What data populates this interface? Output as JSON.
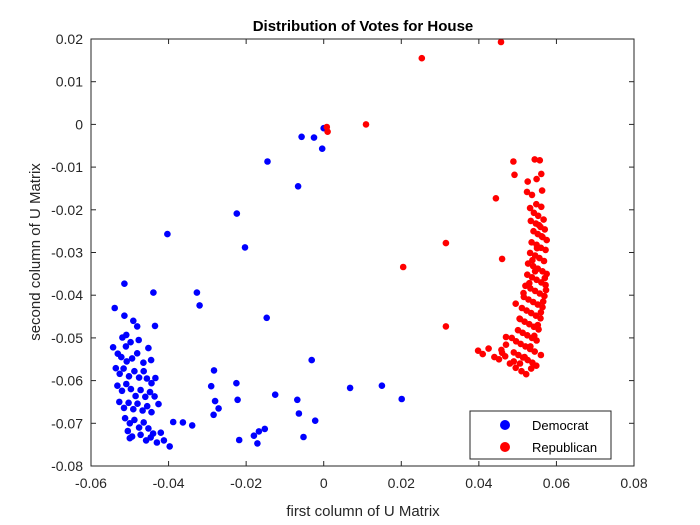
{
  "chart_data": {
    "type": "scatter",
    "title": "Distribution of Votes for House",
    "xlabel": "first column of U Matrix",
    "ylabel": "second column of U Matrix",
    "xlim": [
      -0.06,
      0.08
    ],
    "ylim": [
      -0.08,
      0.02
    ],
    "x_ticks": [
      "-0.06",
      "-0.04",
      "-0.02",
      "0",
      "0.02",
      "0.04",
      "0.06",
      "0.08"
    ],
    "y_ticks": [
      "0.02",
      "0.01",
      "0",
      "-0.01",
      "-0.02",
      "-0.03",
      "-0.04",
      "-0.05",
      "-0.06",
      "-0.07",
      "-0.08"
    ],
    "grid": false,
    "legend_position": "bottom-right",
    "series": [
      {
        "name": "Democrat",
        "color": "#0000ff",
        "points": [
          [
            -0.0514,
            -0.0373
          ],
          [
            -0.0539,
            -0.043
          ],
          [
            -0.0514,
            -0.0448
          ],
          [
            -0.0491,
            -0.046
          ],
          [
            -0.0439,
            -0.0394
          ],
          [
            -0.0403,
            -0.0257
          ],
          [
            -0.0481,
            -0.0473
          ],
          [
            -0.0435,
            -0.0472
          ],
          [
            -0.0543,
            -0.0522
          ],
          [
            -0.0531,
            -0.0537
          ],
          [
            -0.0519,
            -0.0499
          ],
          [
            -0.0509,
            -0.0493
          ],
          [
            -0.0498,
            -0.051
          ],
          [
            -0.051,
            -0.052
          ],
          [
            -0.0522,
            -0.0545
          ],
          [
            -0.0508,
            -0.0555
          ],
          [
            -0.0494,
            -0.0548
          ],
          [
            -0.0481,
            -0.0536
          ],
          [
            -0.0477,
            -0.0505
          ],
          [
            -0.0452,
            -0.0524
          ],
          [
            -0.0445,
            -0.0552
          ],
          [
            -0.0465,
            -0.0558
          ],
          [
            -0.0536,
            -0.0571
          ],
          [
            -0.0526,
            -0.0584
          ],
          [
            -0.0516,
            -0.0572
          ],
          [
            -0.0502,
            -0.059
          ],
          [
            -0.0488,
            -0.0578
          ],
          [
            -0.0476,
            -0.0593
          ],
          [
            -0.0464,
            -0.0578
          ],
          [
            -0.0456,
            -0.0595
          ],
          [
            -0.0444,
            -0.0606
          ],
          [
            -0.0434,
            -0.0594
          ],
          [
            -0.0532,
            -0.0612
          ],
          [
            -0.052,
            -0.0624
          ],
          [
            -0.0509,
            -0.0608
          ],
          [
            -0.0497,
            -0.062
          ],
          [
            -0.0485,
            -0.0636
          ],
          [
            -0.0472,
            -0.0622
          ],
          [
            -0.046,
            -0.0638
          ],
          [
            -0.0448,
            -0.0627
          ],
          [
            -0.0436,
            -0.0637
          ],
          [
            -0.0527,
            -0.065
          ],
          [
            -0.0515,
            -0.0664
          ],
          [
            -0.0503,
            -0.0652
          ],
          [
            -0.0491,
            -0.0667
          ],
          [
            -0.048,
            -0.0654
          ],
          [
            -0.0467,
            -0.067
          ],
          [
            -0.0455,
            -0.066
          ],
          [
            -0.0444,
            -0.0674
          ],
          [
            -0.0426,
            -0.0655
          ],
          [
            -0.0512,
            -0.0688
          ],
          [
            -0.05,
            -0.07
          ],
          [
            -0.0488,
            -0.0692
          ],
          [
            -0.0476,
            -0.071
          ],
          [
            -0.0464,
            -0.0698
          ],
          [
            -0.0452,
            -0.0712
          ],
          [
            -0.044,
            -0.0724
          ],
          [
            -0.0505,
            -0.0718
          ],
          [
            -0.0494,
            -0.0731
          ],
          [
            -0.0472,
            -0.0727
          ],
          [
            -0.0458,
            -0.074
          ],
          [
            -0.0446,
            -0.0733
          ],
          [
            -0.043,
            -0.0745
          ],
          [
            -0.0412,
            -0.074
          ],
          [
            -0.05,
            -0.0735
          ],
          [
            -0.042,
            -0.0722
          ],
          [
            -0.0397,
            -0.0754
          ],
          [
            -0.0388,
            -0.0697
          ],
          [
            -0.0363,
            -0.0698
          ],
          [
            -0.0339,
            -0.0705
          ],
          [
            -0.0327,
            -0.0394
          ],
          [
            -0.032,
            -0.0424
          ],
          [
            -0.0283,
            -0.0576
          ],
          [
            -0.029,
            -0.0613
          ],
          [
            -0.028,
            -0.0648
          ],
          [
            -0.0271,
            -0.0665
          ],
          [
            -0.0284,
            -0.068
          ],
          [
            -0.0225,
            -0.0606
          ],
          [
            -0.0222,
            -0.0645
          ],
          [
            -0.0224,
            -0.0209
          ],
          [
            -0.0203,
            -0.0288
          ],
          [
            -0.0218,
            -0.0739
          ],
          [
            -0.018,
            -0.0729
          ],
          [
            -0.0167,
            -0.0719
          ],
          [
            -0.0152,
            -0.0713
          ],
          [
            -0.0171,
            -0.0747
          ],
          [
            -0.0147,
            -0.0453
          ],
          [
            -0.0145,
            -0.0087
          ],
          [
            -0.0125,
            -0.0633
          ],
          [
            -0.0068,
            -0.0645
          ],
          [
            -0.0066,
            -0.0145
          ],
          [
            -0.0057,
            -0.0029
          ],
          [
            -0.0025,
            -0.0031
          ],
          [
            -0.0004,
            -0.0057
          ],
          [
            0.0,
            -0.0009
          ],
          [
            -0.0064,
            -0.0677
          ],
          [
            -0.0052,
            -0.0732
          ],
          [
            -0.0031,
            -0.0552
          ],
          [
            -0.0022,
            -0.0694
          ],
          [
            0.0068,
            -0.0617
          ],
          [
            0.015,
            -0.0612
          ],
          [
            0.0201,
            -0.0643
          ]
        ]
      },
      {
        "name": "Republican",
        "color": "#ff0000",
        "points": [
          [
            0.0457,
            0.0193
          ],
          [
            0.0253,
            0.0155
          ],
          [
            0.0109,
            0.0
          ],
          [
            0.0008,
            -0.0006
          ],
          [
            0.001,
            -0.0017
          ],
          [
            0.0315,
            -0.0278
          ],
          [
            0.0205,
            -0.0334
          ],
          [
            0.0315,
            -0.0473
          ],
          [
            0.0444,
            -0.0173
          ],
          [
            0.046,
            -0.0315
          ],
          [
            0.0489,
            -0.0087
          ],
          [
            0.0492,
            -0.0118
          ],
          [
            0.0544,
            -0.0082
          ],
          [
            0.0557,
            -0.0084
          ],
          [
            0.0561,
            -0.0116
          ],
          [
            0.0526,
            -0.0134
          ],
          [
            0.0549,
            -0.0128
          ],
          [
            0.0524,
            -0.0158
          ],
          [
            0.0537,
            -0.0165
          ],
          [
            0.0563,
            -0.0155
          ],
          [
            0.0548,
            -0.0187
          ],
          [
            0.0561,
            -0.0193
          ],
          [
            0.0532,
            -0.0196
          ],
          [
            0.0542,
            -0.0207
          ],
          [
            0.0553,
            -0.0214
          ],
          [
            0.0567,
            -0.0223
          ],
          [
            0.0534,
            -0.0226
          ],
          [
            0.0547,
            -0.0232
          ],
          [
            0.0559,
            -0.024
          ],
          [
            0.057,
            -0.0246
          ],
          [
            0.0541,
            -0.025
          ],
          [
            0.0552,
            -0.0257
          ],
          [
            0.0564,
            -0.0264
          ],
          [
            0.0575,
            -0.0271
          ],
          [
            0.0536,
            -0.0276
          ],
          [
            0.0549,
            -0.0282
          ],
          [
            0.056,
            -0.0289
          ],
          [
            0.0572,
            -0.0294
          ],
          [
            0.0532,
            -0.0301
          ],
          [
            0.0545,
            -0.0307
          ],
          [
            0.0556,
            -0.0313
          ],
          [
            0.0568,
            -0.032
          ],
          [
            0.0527,
            -0.0326
          ],
          [
            0.054,
            -0.0332
          ],
          [
            0.0552,
            -0.0338
          ],
          [
            0.0564,
            -0.0344
          ],
          [
            0.0575,
            -0.035
          ],
          [
            0.0525,
            -0.0352
          ],
          [
            0.0537,
            -0.0358
          ],
          [
            0.0549,
            -0.0364
          ],
          [
            0.0561,
            -0.037
          ],
          [
            0.0572,
            -0.0376
          ],
          [
            0.052,
            -0.0378
          ],
          [
            0.0533,
            -0.0384
          ],
          [
            0.0545,
            -0.039
          ],
          [
            0.0557,
            -0.0396
          ],
          [
            0.0569,
            -0.0402
          ],
          [
            0.0516,
            -0.0404
          ],
          [
            0.0528,
            -0.041
          ],
          [
            0.054,
            -0.0416
          ],
          [
            0.0552,
            -0.0422
          ],
          [
            0.0564,
            -0.0428
          ],
          [
            0.0511,
            -0.043
          ],
          [
            0.0523,
            -0.0436
          ],
          [
            0.0535,
            -0.0442
          ],
          [
            0.0547,
            -0.0448
          ],
          [
            0.0559,
            -0.0454
          ],
          [
            0.0506,
            -0.0456
          ],
          [
            0.0518,
            -0.0462
          ],
          [
            0.053,
            -0.0468
          ],
          [
            0.0542,
            -0.0474
          ],
          [
            0.0554,
            -0.048
          ],
          [
            0.0501,
            -0.0482
          ],
          [
            0.0513,
            -0.0488
          ],
          [
            0.0525,
            -0.0494
          ],
          [
            0.0537,
            -0.05
          ],
          [
            0.0549,
            -0.0506
          ],
          [
            0.0496,
            -0.0508
          ],
          [
            0.0508,
            -0.0514
          ],
          [
            0.052,
            -0.052
          ],
          [
            0.0532,
            -0.0526
          ],
          [
            0.0544,
            -0.0532
          ],
          [
            0.049,
            -0.0534
          ],
          [
            0.0502,
            -0.054
          ],
          [
            0.0514,
            -0.0546
          ],
          [
            0.0526,
            -0.0552
          ],
          [
            0.0538,
            -0.0558
          ],
          [
            0.0485,
            -0.05
          ],
          [
            0.047,
            -0.0516
          ],
          [
            0.0458,
            -0.0528
          ],
          [
            0.044,
            -0.0545
          ],
          [
            0.0425,
            -0.0525
          ],
          [
            0.041,
            -0.0538
          ],
          [
            0.0398,
            -0.053
          ],
          [
            0.0452,
            -0.055
          ],
          [
            0.0468,
            -0.0543
          ],
          [
            0.048,
            -0.056
          ],
          [
            0.0495,
            -0.057
          ],
          [
            0.051,
            -0.0578
          ],
          [
            0.0522,
            -0.0585
          ],
          [
            0.0535,
            -0.0572
          ],
          [
            0.0548,
            -0.0565
          ],
          [
            0.056,
            -0.054
          ],
          [
            0.0505,
            -0.0455
          ],
          [
            0.0495,
            -0.042
          ],
          [
            0.0515,
            -0.0395
          ],
          [
            0.053,
            -0.0372
          ],
          [
            0.0545,
            -0.0344
          ],
          [
            0.0538,
            -0.0318
          ],
          [
            0.055,
            -0.029
          ],
          [
            0.0562,
            -0.0262
          ],
          [
            0.0555,
            -0.0236
          ],
          [
            0.057,
            -0.036
          ],
          [
            0.0573,
            -0.0388
          ],
          [
            0.0566,
            -0.0415
          ],
          [
            0.056,
            -0.044
          ],
          [
            0.0552,
            -0.047
          ],
          [
            0.0543,
            -0.0495
          ],
          [
            0.0533,
            -0.052
          ],
          [
            0.0518,
            -0.0545
          ],
          [
            0.0506,
            -0.056
          ],
          [
            0.049,
            -0.0555
          ],
          [
            0.047,
            -0.0498
          ],
          [
            0.046,
            -0.0535
          ]
        ]
      }
    ]
  }
}
